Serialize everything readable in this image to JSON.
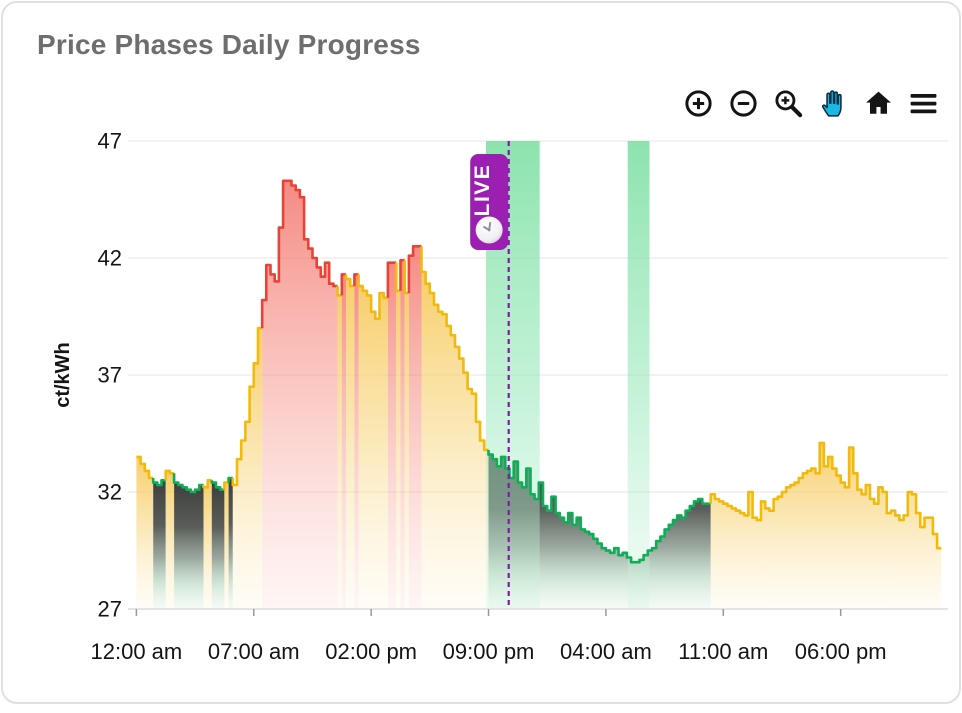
{
  "card": {
    "title": "Price Phases Daily Progress"
  },
  "toolbar": {
    "buttons": [
      {
        "name": "zoom-in",
        "active": false
      },
      {
        "name": "zoom-out",
        "active": false
      },
      {
        "name": "box-zoom",
        "active": false
      },
      {
        "name": "pan",
        "active": true
      },
      {
        "name": "reset-home",
        "active": false
      },
      {
        "name": "menu",
        "active": false
      }
    ],
    "icon_color": "#141414",
    "active_color": "#1bb7e5"
  },
  "live_marker": {
    "label": "LIVE",
    "badge_color": "#9b1fb0",
    "line_color": "#7d1fa2"
  },
  "chart_data": {
    "type": "area",
    "title": "Price Phases Daily Progress",
    "xlabel": "",
    "ylabel": "ct/kWh",
    "ylim": [
      27,
      47
    ],
    "yticks": [
      "47",
      "42",
      "37",
      "32",
      "27"
    ],
    "ytick_values": [
      47,
      42,
      37,
      32,
      27
    ],
    "xticks": [
      {
        "hour": 0,
        "label": "12:00 am"
      },
      {
        "hour": 7,
        "label": "07:00 am"
      },
      {
        "hour": 14,
        "label": "02:00 pm"
      },
      {
        "hour": 21,
        "label": "09:00 pm"
      },
      {
        "hour": 28,
        "label": "04:00 am"
      },
      {
        "hour": 35,
        "label": "11:00 am"
      },
      {
        "hour": 42,
        "label": "06:00 pm"
      }
    ],
    "grid": true,
    "legend": false,
    "step_minutes": 15,
    "start_hour": 0,
    "values": [
      33.5,
      33.2,
      32.9,
      32.6,
      32.4,
      32.3,
      32.5,
      32.9,
      32.8,
      32.4,
      32.3,
      32.2,
      32.1,
      32.0,
      32.1,
      32.3,
      32.2,
      32.5,
      32.4,
      32.2,
      32.1,
      32.4,
      32.6,
      32.3,
      33.4,
      34.2,
      35.0,
      36.5,
      37.5,
      39.0,
      40.2,
      41.7,
      41.3,
      41.0,
      43.3,
      45.3,
      45.3,
      45.1,
      44.9,
      44.6,
      42.8,
      42.4,
      42.0,
      41.6,
      41.2,
      41.8,
      40.9,
      40.8,
      40.4,
      41.3,
      41.1,
      40.8,
      41.3,
      40.8,
      40.6,
      40.4,
      39.7,
      39.4,
      40.5,
      40.3,
      41.8,
      41.8,
      40.6,
      41.9,
      40.5,
      42.1,
      42.5,
      42.5,
      41.4,
      40.9,
      40.5,
      40.0,
      39.7,
      39.6,
      39.1,
      38.7,
      38.2,
      37.7,
      37.1,
      36.4,
      36.2,
      35.0,
      34.2,
      33.8,
      33.6,
      33.4,
      33.1,
      33.5,
      33.0,
      32.6,
      33.3,
      32.4,
      32.2,
      33.0,
      31.9,
      31.7,
      32.4,
      31.4,
      31.2,
      31.8,
      31.1,
      30.9,
      30.7,
      31.1,
      30.6,
      30.9,
      30.4,
      30.3,
      30.2,
      30.0,
      29.8,
      29.6,
      29.5,
      29.4,
      29.6,
      29.3,
      29.4,
      29.2,
      29.0,
      29.0,
      29.1,
      29.3,
      29.5,
      29.6,
      29.9,
      30.1,
      30.4,
      30.6,
      30.8,
      31.0,
      30.9,
      31.2,
      31.4,
      31.6,
      31.7,
      31.5,
      31.5,
      31.9,
      31.7,
      31.6,
      31.5,
      31.4,
      31.3,
      31.2,
      31.1,
      31.0,
      32.0,
      30.9,
      30.8,
      31.6,
      31.3,
      31.2,
      31.7,
      31.8,
      32.0,
      32.2,
      32.3,
      32.4,
      32.6,
      32.8,
      32.9,
      33.0,
      32.8,
      34.1,
      33.1,
      33.5,
      33.0,
      32.7,
      32.4,
      32.2,
      33.9,
      32.8,
      32.1,
      31.9,
      32.3,
      31.7,
      31.5,
      32.2,
      32.0,
      31.1,
      31.2,
      31.0,
      30.8,
      31.0,
      32.0,
      31.9,
      31.1,
      30.5,
      30.9,
      30.9,
      30.2,
      29.6
    ],
    "phases": [
      {
        "start": 0,
        "end": 1,
        "type": "normal"
      },
      {
        "start": 1,
        "end": 1.75,
        "type": "cheap"
      },
      {
        "start": 1.75,
        "end": 2.25,
        "type": "normal"
      },
      {
        "start": 2.25,
        "end": 4,
        "type": "cheap"
      },
      {
        "start": 4,
        "end": 4.5,
        "type": "normal"
      },
      {
        "start": 4.5,
        "end": 5.25,
        "type": "cheap"
      },
      {
        "start": 5.25,
        "end": 5.5,
        "type": "normal"
      },
      {
        "start": 5.5,
        "end": 5.75,
        "type": "cheap"
      },
      {
        "start": 5.75,
        "end": 7.5,
        "type": "normal"
      },
      {
        "start": 7.5,
        "end": 12,
        "type": "expensive"
      },
      {
        "start": 12,
        "end": 12.25,
        "type": "normal"
      },
      {
        "start": 12.25,
        "end": 12.5,
        "type": "expensive"
      },
      {
        "start": 12.5,
        "end": 13,
        "type": "normal"
      },
      {
        "start": 13,
        "end": 13.25,
        "type": "expensive"
      },
      {
        "start": 13.25,
        "end": 15,
        "type": "normal"
      },
      {
        "start": 15,
        "end": 15.5,
        "type": "expensive"
      },
      {
        "start": 15.5,
        "end": 15.75,
        "type": "normal"
      },
      {
        "start": 15.75,
        "end": 16,
        "type": "expensive"
      },
      {
        "start": 16,
        "end": 16.25,
        "type": "normal"
      },
      {
        "start": 16.25,
        "end": 17,
        "type": "expensive"
      },
      {
        "start": 17,
        "end": 21,
        "type": "normal"
      },
      {
        "start": 21,
        "end": 34.25,
        "type": "cheap"
      },
      {
        "start": 34.25,
        "end": 48,
        "type": "normal"
      }
    ],
    "phase_colors": {
      "normal": {
        "line": "#f2ba0a"
      },
      "expensive": {
        "line": "#e94337"
      },
      "cheap": {
        "line": "#0eae57"
      }
    },
    "highlight_bands": [
      {
        "start": 20.85,
        "end": 24.05
      },
      {
        "start": 29.3,
        "end": 30.6
      }
    ],
    "band_color": "#78de9f",
    "now_line_hour": 22.2,
    "grid_color": "#ededed",
    "tick_text_color": "#141414"
  }
}
